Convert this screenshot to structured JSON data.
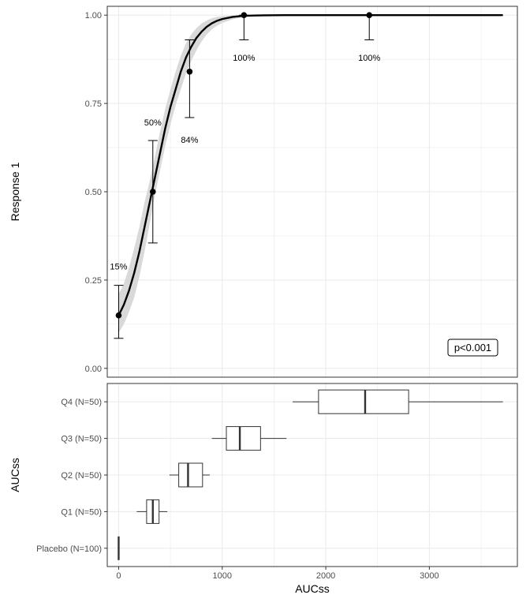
{
  "chart_data": [
    {
      "type": "line",
      "panel": "top",
      "ylabel": "Response 1",
      "xlim": [
        -110,
        3850
      ],
      "ylim": [
        -0.025,
        1.025
      ],
      "yticks": [
        0.0,
        0.25,
        0.5,
        0.75,
        1.0
      ],
      "ytick_labels": [
        "0.00",
        "0.25",
        "0.50",
        "0.75",
        "1.00"
      ],
      "xticks": [
        0,
        1000,
        2000,
        3000
      ],
      "grid": true,
      "colors": {
        "line": "#000000",
        "band": "#d9d9d9",
        "grid": "#ebebeb",
        "panel_border": "#333333"
      },
      "logistic_fit": {
        "x": [
          0,
          50,
          100,
          150,
          200,
          250,
          300,
          350,
          400,
          450,
          500,
          550,
          600,
          650,
          700,
          750,
          800,
          850,
          900,
          950,
          1000,
          1100,
          1200,
          1300,
          1400,
          1600,
          2000,
          2500,
          3000,
          3500,
          3710
        ],
        "y": [
          0.15,
          0.18,
          0.22,
          0.27,
          0.33,
          0.4,
          0.47,
          0.54,
          0.61,
          0.68,
          0.74,
          0.79,
          0.84,
          0.88,
          0.91,
          0.935,
          0.953,
          0.967,
          0.977,
          0.984,
          0.989,
          0.995,
          0.998,
          0.999,
          0.9995,
          1.0,
          1.0,
          1.0,
          1.0,
          1.0,
          1.0
        ],
        "lower": [
          0.1,
          0.125,
          0.16,
          0.2,
          0.26,
          0.33,
          0.41,
          0.49,
          0.56,
          0.63,
          0.69,
          0.745,
          0.79,
          0.835,
          0.87,
          0.9,
          0.925,
          0.945,
          0.96,
          0.97,
          0.978,
          0.988,
          0.994,
          0.997,
          0.998,
          0.999,
          1.0,
          1.0,
          1.0,
          1.0,
          1.0
        ],
        "upper": [
          0.21,
          0.24,
          0.285,
          0.34,
          0.4,
          0.47,
          0.53,
          0.6,
          0.67,
          0.735,
          0.79,
          0.84,
          0.885,
          0.92,
          0.945,
          0.963,
          0.976,
          0.985,
          0.991,
          0.995,
          0.997,
          0.999,
          0.9995,
          1.0,
          1.0,
          1.0,
          1.0,
          1.0,
          1.0,
          1.0,
          1.0
        ]
      },
      "observed": [
        {
          "x": 0,
          "y": 0.15,
          "lower": 0.085,
          "upper": 0.235,
          "label": "15%"
        },
        {
          "x": 330,
          "y": 0.5,
          "lower": 0.355,
          "upper": 0.645,
          "label": "50%"
        },
        {
          "x": 685,
          "y": 0.84,
          "lower": 0.71,
          "upper": 0.93,
          "label": "84%"
        },
        {
          "x": 1210,
          "y": 1.0,
          "lower": 0.93,
          "upper": 1.0,
          "label": "100%"
        },
        {
          "x": 2420,
          "y": 1.0,
          "lower": 0.93,
          "upper": 1.0,
          "label": "100%"
        }
      ],
      "annotation": "p<0.001"
    },
    {
      "type": "boxplot",
      "panel": "bottom",
      "ylabel": "AUCss",
      "xlabel": "AUCss",
      "xlim": [
        -110,
        3850
      ],
      "xticks": [
        0,
        1000,
        2000,
        3000
      ],
      "xtick_labels": [
        "0",
        "1000",
        "2000",
        "3000"
      ],
      "categories": [
        "Placebo (N=100)",
        "Q1 (N=50)",
        "Q2 (N=50)",
        "Q3 (N=50)",
        "Q4 (N=50)"
      ],
      "boxes": [
        {
          "category": "Placebo (N=100)",
          "min": 0,
          "q1": 0,
          "median": 0,
          "q3": 0,
          "max": 0
        },
        {
          "category": "Q1 (N=50)",
          "min": 175,
          "q1": 270,
          "median": 330,
          "q3": 390,
          "max": 470
        },
        {
          "category": "Q2 (N=50)",
          "min": 490,
          "q1": 580,
          "median": 670,
          "q3": 810,
          "max": 880
        },
        {
          "category": "Q3 (N=50)",
          "min": 900,
          "q1": 1040,
          "median": 1170,
          "q3": 1370,
          "max": 1620
        },
        {
          "category": "Q4 (N=50)",
          "min": 1680,
          "q1": 1930,
          "median": 2380,
          "q3": 2800,
          "max": 3710
        }
      ]
    }
  ]
}
